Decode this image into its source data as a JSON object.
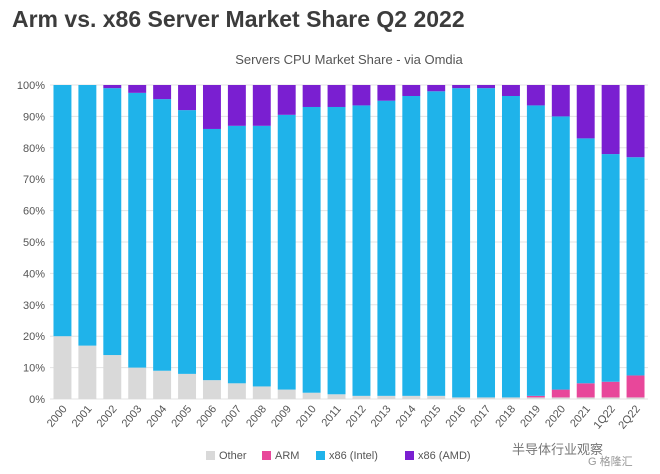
{
  "page_title": "Arm vs. x86 Server Market Share Q2 2022",
  "watermark": {
    "primary": "半导体行业观察",
    "secondary": "G 格隆汇"
  },
  "colors": {
    "other": "#d9d9d9",
    "arm": "#e8479a",
    "intel": "#1fb3ea",
    "amd": "#7a1fd1",
    "grid": "#e3e3e3",
    "axis_text": "#555555"
  },
  "chart_data": {
    "type": "bar",
    "stacked": true,
    "title": "Servers CPU Market Share - via Omdia",
    "xlabel": "",
    "ylabel": "",
    "ylim": [
      0,
      100
    ],
    "yticks": [
      "0%",
      "10%",
      "20%",
      "30%",
      "40%",
      "50%",
      "60%",
      "70%",
      "80%",
      "90%",
      "100%"
    ],
    "categories": [
      "2000",
      "2001",
      "2002",
      "2003",
      "2004",
      "2005",
      "2006",
      "2007",
      "2008",
      "2009",
      "2010",
      "2011",
      "2012",
      "2013",
      "2014",
      "2015",
      "2016",
      "2017",
      "2018",
      "2019",
      "2020",
      "2021",
      "1Q22",
      "2Q22"
    ],
    "series": [
      {
        "name": "Other",
        "color": "#d9d9d9",
        "values": [
          20,
          17,
          14,
          10,
          9,
          8,
          6,
          5,
          4,
          3,
          2,
          1.5,
          1,
          1,
          1,
          1,
          0.5,
          0.5,
          0.5,
          0.5,
          0.5,
          0.5,
          0.5,
          0.5
        ]
      },
      {
        "name": "ARM",
        "color": "#e8479a",
        "values": [
          0,
          0,
          0,
          0,
          0,
          0,
          0,
          0,
          0,
          0,
          0,
          0,
          0,
          0,
          0,
          0,
          0,
          0,
          0,
          0.5,
          2.5,
          4.5,
          5,
          7
        ]
      },
      {
        "name": "x86 (Intel)",
        "color": "#1fb3ea",
        "values": [
          80,
          83,
          85,
          87.5,
          86.5,
          84,
          80,
          82,
          83,
          87.5,
          91,
          91.5,
          92.5,
          94,
          95.5,
          97,
          98.5,
          98.5,
          96,
          92.5,
          87,
          78,
          72.5,
          69.5
        ]
      },
      {
        "name": "x86 (AMD)",
        "color": "#7a1fd1",
        "values": [
          0,
          0,
          1,
          2.5,
          4.5,
          8,
          14,
          13,
          13,
          9.5,
          7,
          7,
          6.5,
          5,
          3.5,
          2,
          1,
          1,
          3.5,
          6.5,
          10,
          17,
          22,
          23
        ]
      }
    ],
    "legend": {
      "position": "bottom",
      "labels": [
        "Other",
        "ARM",
        "x86 (Intel)",
        "x86 (AMD)"
      ]
    }
  }
}
